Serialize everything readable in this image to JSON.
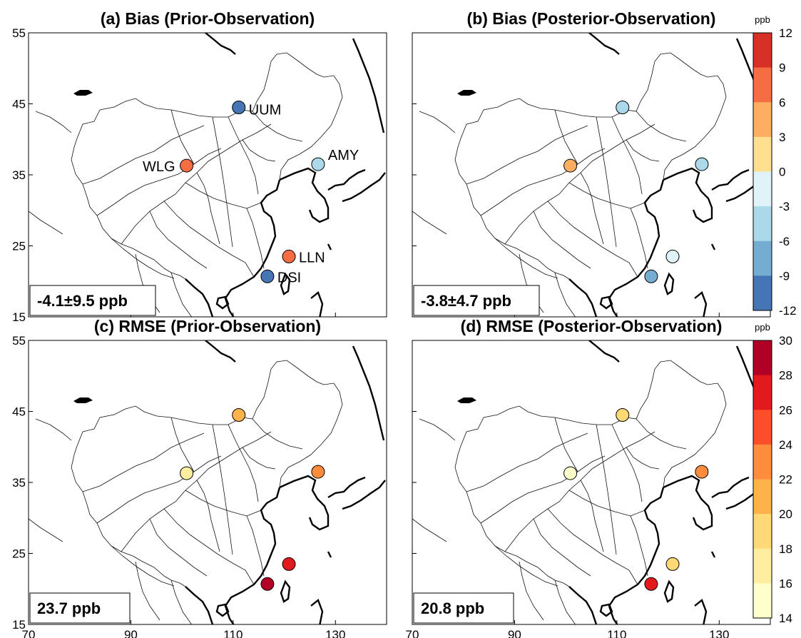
{
  "axes": {
    "lon_range": [
      70,
      140
    ],
    "lat_range": [
      15,
      55
    ],
    "x_ticks": [
      "70",
      "90",
      "110",
      "130"
    ],
    "y_ticks": [
      "55",
      "45",
      "35",
      "25",
      "15"
    ]
  },
  "stations": [
    {
      "code": "UUM",
      "lon": 111.1,
      "lat": 44.5
    },
    {
      "code": "AMY",
      "lon": 126.6,
      "lat": 36.5
    },
    {
      "code": "WLG",
      "lon": 100.9,
      "lat": 36.3
    },
    {
      "code": "LLN",
      "lon": 120.9,
      "lat": 23.5
    },
    {
      "code": "DSI",
      "lon": 116.7,
      "lat": 20.7
    }
  ],
  "panels": [
    {
      "id": "a",
      "title": "(a) Bias (Prior-Observation)",
      "summary": "-4.1±9.5 ppb",
      "show_station_labels": true,
      "values": {
        "UUM": -10.5,
        "AMY": -5.5,
        "WLG": 7.5,
        "LLN": 6.5,
        "DSI": -10.5
      }
    },
    {
      "id": "b",
      "title": "(b) Bias (Posterior-Observation)",
      "summary": "-3.8±4.7 ppb",
      "show_station_labels": false,
      "values": {
        "UUM": -5.5,
        "AMY": -4.5,
        "WLG": 4.5,
        "LLN": -1.5,
        "DSI": -7.5
      }
    },
    {
      "id": "c",
      "title": "(c) RMSE (Prior-Observation)",
      "summary": "23.7 ppb",
      "show_station_labels": false,
      "values": {
        "UUM": 20.5,
        "AMY": 22.5,
        "WLG": 17.5,
        "LLN": 27,
        "DSI": 29
      }
    },
    {
      "id": "d",
      "title": "(d) RMSE (Posterior-Observation)",
      "summary": "20.8 ppb",
      "show_station_labels": false,
      "values": {
        "UUM": 18.5,
        "AMY": 22.5,
        "WLG": 15,
        "LLN": 18.5,
        "DSI": 27
      }
    }
  ],
  "colorbars": [
    {
      "unit": "ppb",
      "ticks": [
        "12",
        "9",
        "6",
        "3",
        "0",
        "-3",
        "-6",
        "-9",
        "-12"
      ],
      "range": [
        -12,
        12
      ],
      "colors": [
        "#d73027",
        "#f46d43",
        "#fdae61",
        "#fee090",
        "#e0f3f8",
        "#abd9e9",
        "#74add1",
        "#4575b4"
      ]
    },
    {
      "unit": "ppb",
      "ticks": [
        "30",
        "28",
        "26",
        "24",
        "22",
        "20",
        "18",
        "16",
        "14"
      ],
      "range": [
        14,
        30
      ],
      "colors": [
        "#b10026",
        "#e31a1c",
        "#fc4e2a",
        "#fd8d3c",
        "#feb24c",
        "#fed976",
        "#ffeda0",
        "#ffffcc"
      ]
    }
  ]
}
